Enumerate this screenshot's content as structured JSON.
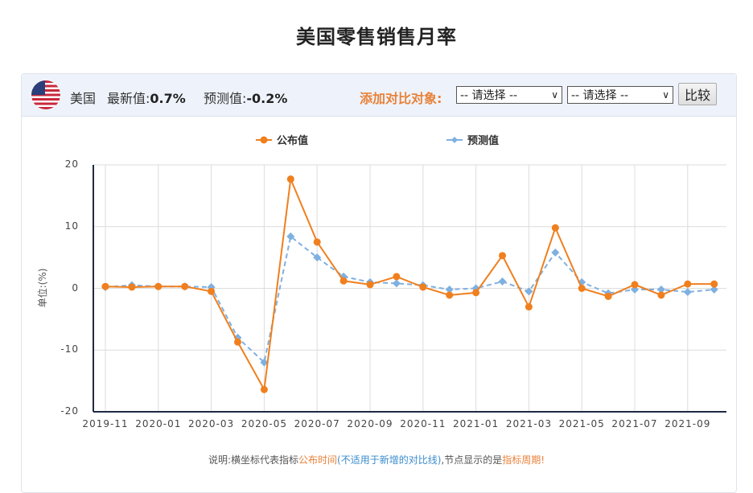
{
  "title": "美国零售销售月率",
  "header": {
    "country": "美国",
    "latest_label": "最新值:",
    "latest_value": "0.7%",
    "forecast_label": "预测值:",
    "forecast_value": "-0.2%",
    "compare_label": "添加对比对象:",
    "select1": "-- 请选择 --",
    "select2": "-- 请选择 --",
    "compare_button": "比较"
  },
  "legend": {
    "published": "公布值",
    "forecast": "预测值"
  },
  "note": {
    "p1": "说明:横坐标代表指标",
    "p2": "公布时间",
    "p3": "(不适用于新增的对比线)",
    "p4": ",节点显示的是",
    "p5": "指标周期!"
  },
  "colors": {
    "published": "#f07f1e",
    "forecast": "#7fb0e0",
    "axis": "#1f2a44",
    "grid": "#dcdcdc",
    "accent": "#e8823a"
  },
  "chart_data": {
    "type": "line",
    "title": "美国零售销售月率",
    "ylabel": "单位:(%)",
    "xlabel": "",
    "ylim": [
      -20,
      20
    ],
    "yticks": [
      20,
      10,
      0,
      -10,
      -20
    ],
    "xtick_labels": [
      "2019-11",
      "2020-01",
      "2020-03",
      "2020-05",
      "2020-07",
      "2020-09",
      "2020-11",
      "2021-01",
      "2021-03",
      "2021-05",
      "2021-07",
      "2021-09"
    ],
    "grid": true,
    "legend_position": "top",
    "x": [
      "2019-11",
      "2019-12",
      "2020-01",
      "2020-02",
      "2020-03",
      "2020-04",
      "2020-05",
      "2020-06",
      "2020-07",
      "2020-08",
      "2020-09",
      "2020-10",
      "2020-11",
      "2020-12",
      "2021-01",
      "2021-02",
      "2021-03",
      "2021-04",
      "2021-05",
      "2021-06",
      "2021-07",
      "2021-08",
      "2021-09",
      "2021-10"
    ],
    "series": [
      {
        "name": "公布值",
        "style": "solid-circle",
        "values": [
          0.3,
          0.2,
          0.3,
          0.3,
          -0.5,
          -8.7,
          -16.4,
          17.7,
          7.5,
          1.2,
          0.6,
          1.9,
          0.2,
          -1.1,
          -0.7,
          5.3,
          -3.0,
          9.8,
          0.0,
          -1.3,
          0.6,
          -1.1,
          0.7,
          0.7
        ]
      },
      {
        "name": "预测值",
        "style": "dashed-diamond",
        "values": [
          0.2,
          0.5,
          0.3,
          0.3,
          0.2,
          -8.0,
          -12.0,
          8.4,
          5.0,
          1.9,
          1.0,
          0.8,
          0.5,
          -0.2,
          0.0,
          1.1,
          -0.5,
          5.8,
          1.0,
          -0.8,
          -0.2,
          -0.2,
          -0.6,
          -0.2
        ]
      }
    ]
  }
}
